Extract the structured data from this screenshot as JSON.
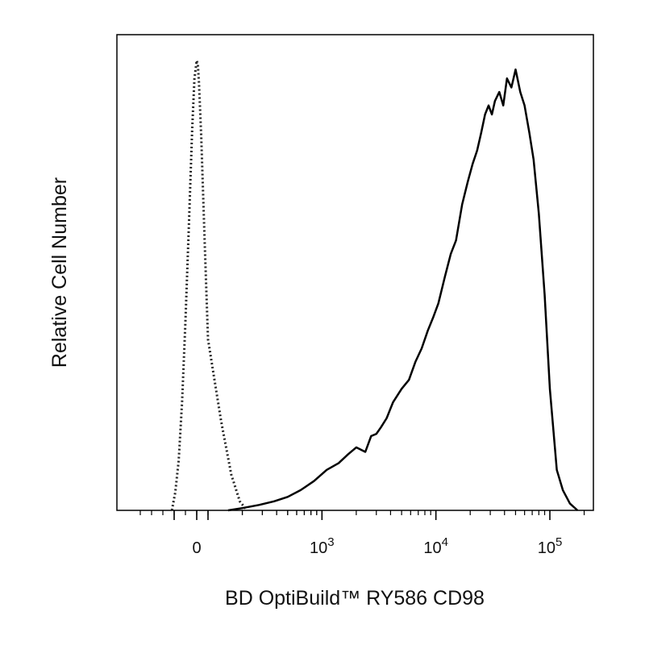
{
  "chart_data": {
    "type": "line",
    "title": "",
    "xlabel": "BD OptiBuild™ RY586 CD98",
    "ylabel": "Relative Cell Number",
    "x_scale": "biexponential",
    "xlim": [
      -500,
      200000
    ],
    "ylim": [
      0,
      1
    ],
    "grid": false,
    "legend": "none",
    "x_ticks": [
      {
        "value": 0,
        "base": "0",
        "exp": ""
      },
      {
        "value": 1000,
        "base": "10",
        "exp": "3"
      },
      {
        "value": 10000,
        "base": "10",
        "exp": "4"
      },
      {
        "value": 100000,
        "base": "10",
        "exp": "5"
      }
    ],
    "series": [
      {
        "style": "dotted",
        "color": "#222222",
        "x": [
          -220,
          -190,
          -160,
          -130,
          -100,
          -70,
          -40,
          -20,
          0,
          10,
          20,
          40,
          70,
          100,
          130,
          160,
          190,
          220
        ],
        "y": [
          0.0,
          0.04,
          0.11,
          0.24,
          0.42,
          0.63,
          0.85,
          0.96,
          1.0,
          0.99,
          0.95,
          0.83,
          0.6,
          0.38,
          0.2,
          0.08,
          0.02,
          0.0
        ]
      },
      {
        "style": "solid",
        "color": "#000000",
        "x": [
          150,
          200,
          280,
          380,
          500,
          650,
          850,
          1100,
          1400,
          1700,
          2000,
          2400,
          2700,
          3000,
          3300,
          3700,
          4200,
          5000,
          5800,
          6600,
          7500,
          8500,
          9500,
          10500,
          12000,
          13500,
          15000,
          17000,
          19000,
          21000,
          23000,
          25000,
          27000,
          29000,
          31000,
          33000,
          36000,
          39000,
          42000,
          46000,
          50000,
          55000,
          60000,
          66000,
          72000,
          80000,
          90000,
          100000,
          115000,
          130000,
          150000,
          175000
        ],
        "y": [
          0.0,
          0.005,
          0.012,
          0.02,
          0.03,
          0.045,
          0.065,
          0.09,
          0.105,
          0.125,
          0.14,
          0.13,
          0.165,
          0.17,
          0.185,
          0.205,
          0.24,
          0.27,
          0.29,
          0.33,
          0.36,
          0.4,
          0.43,
          0.46,
          0.52,
          0.57,
          0.6,
          0.68,
          0.73,
          0.77,
          0.8,
          0.84,
          0.88,
          0.9,
          0.88,
          0.91,
          0.93,
          0.9,
          0.96,
          0.94,
          0.98,
          0.93,
          0.9,
          0.84,
          0.78,
          0.66,
          0.48,
          0.27,
          0.09,
          0.045,
          0.015,
          0.0
        ]
      }
    ]
  }
}
